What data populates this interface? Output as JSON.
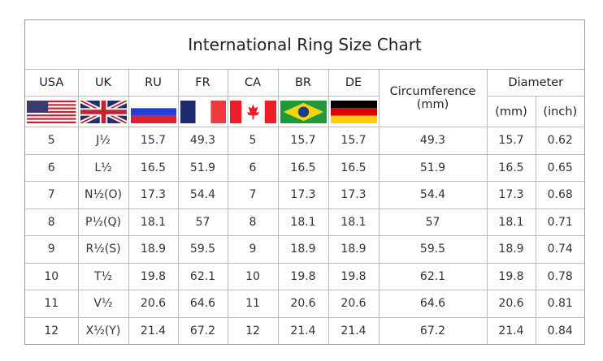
{
  "title": "International Ring Size Chart",
  "headers": {
    "usa": "USA",
    "uk": "UK",
    "ru": "RU",
    "fr": "FR",
    "ca": "CA",
    "br": "BR",
    "de": "DE",
    "circumference": "Circumference",
    "circumference_unit": "(mm)",
    "diameter": "Diameter",
    "diameter_mm": "(mm)",
    "diameter_inch": "(inch)"
  },
  "flags": [
    "usa-flag",
    "uk-flag",
    "russia-flag",
    "france-flag",
    "canada-flag",
    "brazil-flag",
    "germany-flag"
  ],
  "rows": [
    [
      "5",
      "J½",
      "15.7",
      "49.3",
      "5",
      "15.7",
      "15.7",
      "49.3",
      "15.7",
      "0.62"
    ],
    [
      "6",
      "L½",
      "16.5",
      "51.9",
      "6",
      "16.5",
      "16.5",
      "51.9",
      "16.5",
      "0.65"
    ],
    [
      "7",
      "N½(O)",
      "17.3",
      "54.4",
      "7",
      "17.3",
      "17.3",
      "54.4",
      "17.3",
      "0.68"
    ],
    [
      "8",
      "P½(Q)",
      "18.1",
      "57",
      "8",
      "18.1",
      "18.1",
      "57",
      "18.1",
      "0.71"
    ],
    [
      "9",
      "R½(S)",
      "18.9",
      "59.5",
      "9",
      "18.9",
      "18.9",
      "59.5",
      "18.9",
      "0.74"
    ],
    [
      "10",
      "T½",
      "19.8",
      "62.1",
      "10",
      "19.8",
      "19.8",
      "62.1",
      "19.8",
      "0.78"
    ],
    [
      "11",
      "V½",
      "20.6",
      "64.6",
      "11",
      "20.6",
      "20.6",
      "64.6",
      "20.6",
      "0.81"
    ],
    [
      "12",
      "X½(Y)",
      "21.4",
      "67.2",
      "12",
      "21.4",
      "21.4",
      "67.2",
      "21.4",
      "0.84"
    ]
  ]
}
